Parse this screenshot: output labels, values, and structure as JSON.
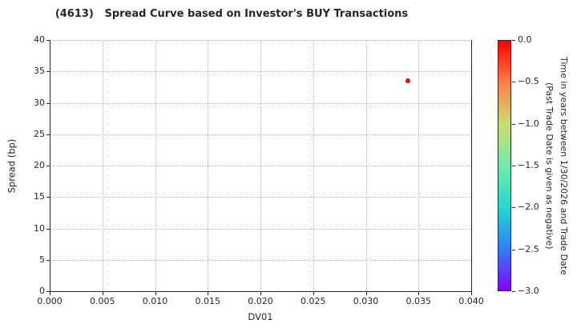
{
  "title": "(4613)   Spread Curve based on Investor's BUY Transactions",
  "chart_data": {
    "type": "scatter",
    "title": "(4613)   Spread Curve based on Investor's BUY Transactions",
    "xlabel": "DV01",
    "ylabel": "Spread (bp)",
    "xlim": [
      0.0,
      0.04
    ],
    "ylim": [
      0,
      40
    ],
    "grid": true,
    "grid_style": "dotted",
    "x_ticks": [
      {
        "value": 0.0,
        "label": "0.000"
      },
      {
        "value": 0.005,
        "label": "0.005"
      },
      {
        "value": 0.01,
        "label": "0.010"
      },
      {
        "value": 0.015,
        "label": "0.015"
      },
      {
        "value": 0.02,
        "label": "0.020"
      },
      {
        "value": 0.025,
        "label": "0.025"
      },
      {
        "value": 0.03,
        "label": "0.030"
      },
      {
        "value": 0.035,
        "label": "0.035"
      },
      {
        "value": 0.04,
        "label": "0.040"
      }
    ],
    "y_ticks": [
      {
        "value": 0,
        "label": "0"
      },
      {
        "value": 5,
        "label": "5"
      },
      {
        "value": 10,
        "label": "10"
      },
      {
        "value": 15,
        "label": "15"
      },
      {
        "value": 20,
        "label": "20"
      },
      {
        "value": 25,
        "label": "25"
      },
      {
        "value": 30,
        "label": "30"
      },
      {
        "value": 35,
        "label": "35"
      },
      {
        "value": 40,
        "label": "40"
      }
    ],
    "points": [
      {
        "x": 0.034,
        "y": 33.5,
        "color": "#ff0000",
        "colorbar_value": 0.0
      }
    ],
    "colorbar": {
      "label": "Time in years between 1/30/2026 and Trade Date\n(Past Trade Date is given as negative)",
      "max": 0.0,
      "min": -3.0,
      "orientation": "vertical",
      "position": "right",
      "ticks": [
        {
          "value": 0.0,
          "label": "0.0"
        },
        {
          "value": -0.5,
          "label": "−0.5"
        },
        {
          "value": -1.0,
          "label": "−1.0"
        },
        {
          "value": -1.5,
          "label": "−1.5"
        },
        {
          "value": -2.0,
          "label": "−2.0"
        },
        {
          "value": -2.5,
          "label": "−2.5"
        },
        {
          "value": -3.0,
          "label": "−3.0"
        }
      ],
      "gradient": [
        {
          "value": 0.0,
          "color": "#ff0000"
        },
        {
          "value": -0.5,
          "color": "#fb7f47"
        },
        {
          "value": -1.0,
          "color": "#cbdd70"
        },
        {
          "value": -1.5,
          "color": "#74ebab"
        },
        {
          "value": -2.0,
          "color": "#24d8d2"
        },
        {
          "value": -2.5,
          "color": "#2f7ff2"
        },
        {
          "value": -3.0,
          "color": "#8203fb"
        }
      ]
    }
  }
}
